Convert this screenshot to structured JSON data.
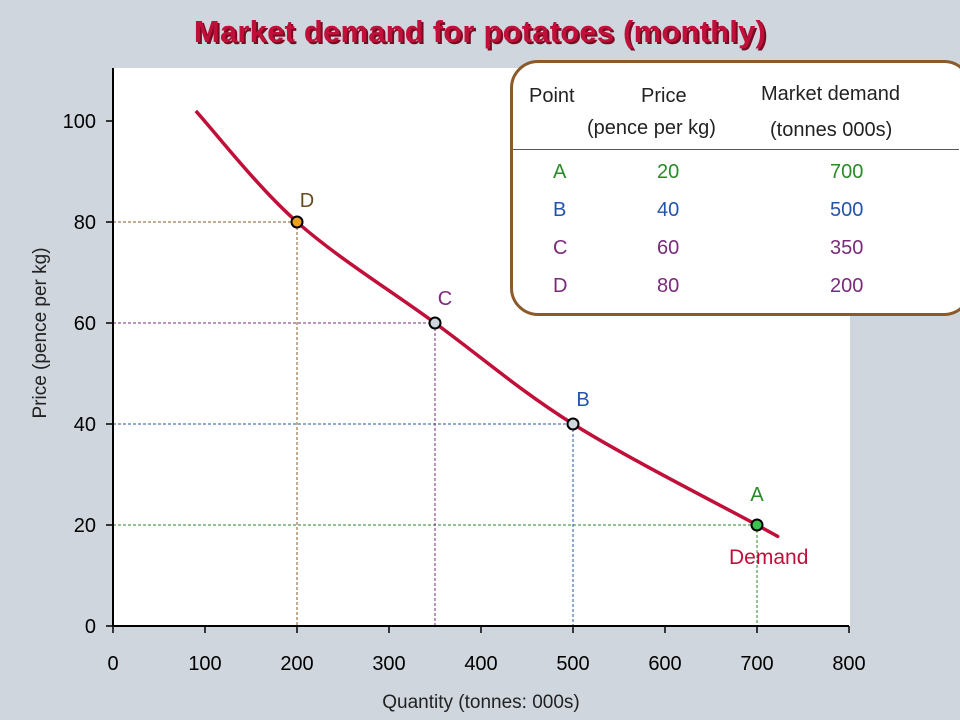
{
  "title": "Market demand for potatoes (monthly)",
  "chart_data": {
    "type": "line",
    "title": "Market demand for potatoes (monthly)",
    "xlabel": "Quantity (tonnes: 000s)",
    "ylabel": "Price (pence per kg)",
    "xlim": [
      0,
      800
    ],
    "ylim": [
      0,
      100
    ],
    "xticks": [
      0,
      100,
      200,
      300,
      400,
      500,
      600,
      700,
      800
    ],
    "yticks": [
      0,
      20,
      40,
      60,
      80,
      100
    ],
    "grid": false,
    "series": [
      {
        "name": "Demand",
        "color": "#c0103a",
        "points": [
          {
            "x": 90,
            "y": 102
          },
          {
            "x": 200,
            "y": 80
          },
          {
            "x": 350,
            "y": 60
          },
          {
            "x": 500,
            "y": 40
          },
          {
            "x": 700,
            "y": 20
          },
          {
            "x": 720,
            "y": 18
          }
        ]
      }
    ],
    "highlighted_points": [
      {
        "label": "A",
        "x": 700,
        "y": 20,
        "fill": "#3cc24e",
        "label_color": "#2a8a2a"
      },
      {
        "label": "B",
        "x": 500,
        "y": 40,
        "fill": "#cfd6dd",
        "label_color": "#2255aa"
      },
      {
        "label": "C",
        "x": 350,
        "y": 60,
        "fill": "#cfd6dd",
        "label_color": "#7a2a7a"
      },
      {
        "label": "D",
        "x": 200,
        "y": 80,
        "fill": "#f0a020",
        "label_color": "#6a4a20"
      }
    ],
    "guide_colors": {
      "A": "#2a8a2a",
      "B": "#2255aa",
      "C": "#7a2a7a",
      "D": "#8a5a2a"
    }
  },
  "table": {
    "headers": {
      "point": "Point",
      "price": "Price",
      "price_unit": "(pence per kg)",
      "demand": "Market demand",
      "demand_unit": "(tonnes 000s)"
    },
    "rows": [
      {
        "point": "A",
        "price": "20",
        "demand": "700",
        "point_color": "#2a8a2a",
        "price_color": "#2a8a2a",
        "demand_color": "#2a8a2a"
      },
      {
        "point": "B",
        "price": "40",
        "demand": "500",
        "point_color": "#2255aa",
        "price_color": "#2255aa",
        "demand_color": "#2255aa"
      },
      {
        "point": "C",
        "price": "60",
        "demand": "350",
        "point_color": "#7a2a7a",
        "price_color": "#7a2a7a",
        "demand_color": "#7a2a7a"
      },
      {
        "point": "D",
        "price": "80",
        "demand": "200",
        "point_color": "#7a2a7a",
        "price_color": "#7a2a7a",
        "demand_color": "#7a2a7a"
      }
    ]
  },
  "demand_label": "Demand"
}
